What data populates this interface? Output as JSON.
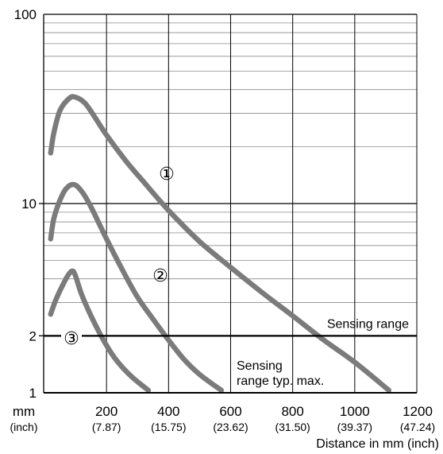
{
  "chart_data": {
    "type": "line",
    "xlabel": "Distance in mm (inch)",
    "ylabel": "",
    "xlim": [
      0,
      1200
    ],
    "ylim": [
      1,
      100
    ],
    "y_scale": "log",
    "grid": true,
    "x_ticks": [
      {
        "value": 0,
        "label": "mm",
        "sub": "(inch)"
      },
      {
        "value": 200,
        "label": "200",
        "sub": "(7.87)"
      },
      {
        "value": 400,
        "label": "400",
        "sub": "(15.75)"
      },
      {
        "value": 600,
        "label": "600",
        "sub": "(23.62)"
      },
      {
        "value": 800,
        "label": "800",
        "sub": "(31.50)"
      },
      {
        "value": 1000,
        "label": "1000",
        "sub": "(39.37)"
      },
      {
        "value": 1200,
        "label": "1200",
        "sub": "(47.24)"
      }
    ],
    "y_ticks": [
      {
        "value": 1,
        "label": "1"
      },
      {
        "value": 2,
        "label": "2"
      },
      {
        "value": 10,
        "label": "10"
      },
      {
        "value": 100,
        "label": "100"
      }
    ],
    "series": [
      {
        "marker": "①",
        "x": [
          20,
          30,
          50,
          80,
          100,
          130,
          160,
          200,
          260,
          320,
          400,
          500,
          600,
          700,
          800,
          900,
          1000,
          1110
        ],
        "y": [
          18.5,
          23.5,
          31,
          36,
          36.5,
          34,
          29,
          23,
          17,
          13,
          9.2,
          6.3,
          4.6,
          3.4,
          2.55,
          1.9,
          1.45,
          1.03
        ]
      },
      {
        "marker": "②",
        "x": [
          20,
          30,
          50,
          70,
          95,
          120,
          150,
          200,
          250,
          300,
          350,
          400,
          450,
          500,
          570
        ],
        "y": [
          6.5,
          8.3,
          10.4,
          12,
          12.6,
          11.6,
          9.6,
          6.5,
          4.5,
          3.2,
          2.45,
          1.9,
          1.5,
          1.25,
          1.03
        ]
      },
      {
        "marker": "③",
        "x": [
          20,
          35,
          55,
          75,
          90,
          100,
          120,
          150,
          190,
          230,
          280,
          335
        ],
        "y": [
          2.6,
          3.05,
          3.6,
          4.15,
          4.4,
          4.15,
          3.3,
          2.55,
          1.9,
          1.5,
          1.22,
          1.03
        ]
      }
    ],
    "reference_line": {
      "value": 2,
      "label": "Sensing range"
    },
    "annotation": {
      "line1": "Sensing",
      "line2": "range typ. max."
    }
  }
}
